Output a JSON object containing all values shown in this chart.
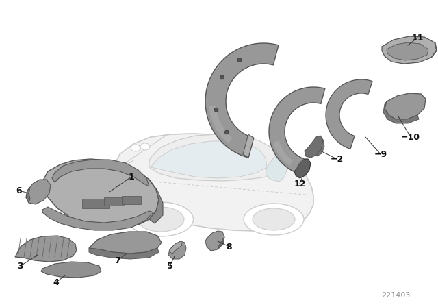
{
  "background_color": "#ffffff",
  "fig_width": 6.4,
  "fig_height": 4.48,
  "dpi": 100,
  "diagram_number": "221403",
  "car_outline_color": "#cccccc",
  "car_fill_color": "#f2f2f2",
  "part_fill_light": "#b0b0b0",
  "part_fill_mid": "#989898",
  "part_fill_dark": "#787878",
  "part_edge": "#555555",
  "label_color": "#111111",
  "label_fontsize": 9,
  "diagram_num_color": "#999999",
  "diagram_num_fontsize": 8
}
